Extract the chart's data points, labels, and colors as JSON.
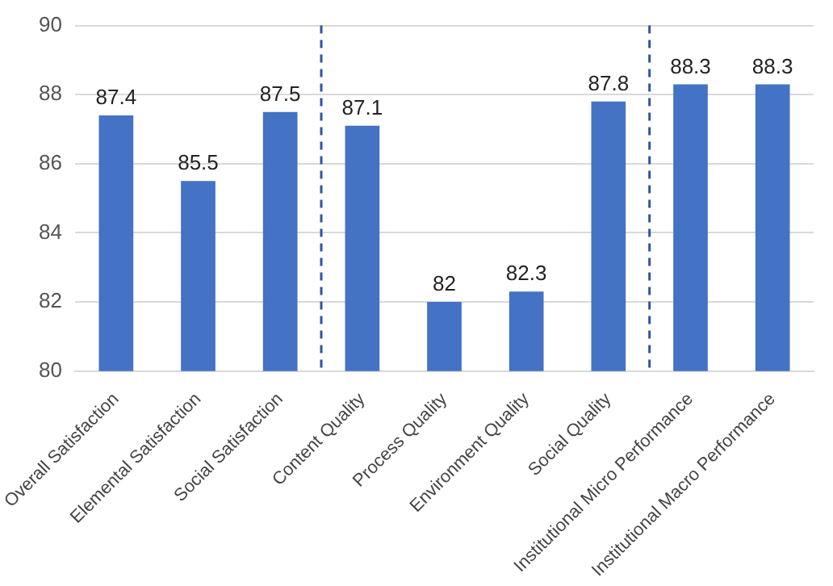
{
  "chart_data": {
    "type": "bar",
    "categories": [
      "Overall Satisfaction",
      "Elemental Satisfaction",
      "Social Satisfaction",
      "Content Quality",
      "Process Quality",
      "Environment Quality",
      "Social Quality",
      "Institutional Micro Performance",
      "Institutional Macro Performance"
    ],
    "values": [
      87.4,
      85.5,
      87.5,
      87.1,
      82,
      82.3,
      87.8,
      88.3,
      88.3
    ],
    "color": "#4472c4",
    "ylim": [
      80,
      90
    ],
    "yticks": [
      80,
      82,
      84,
      86,
      88,
      90
    ],
    "grid": "y",
    "data_labels": true,
    "legend": false
  }
}
